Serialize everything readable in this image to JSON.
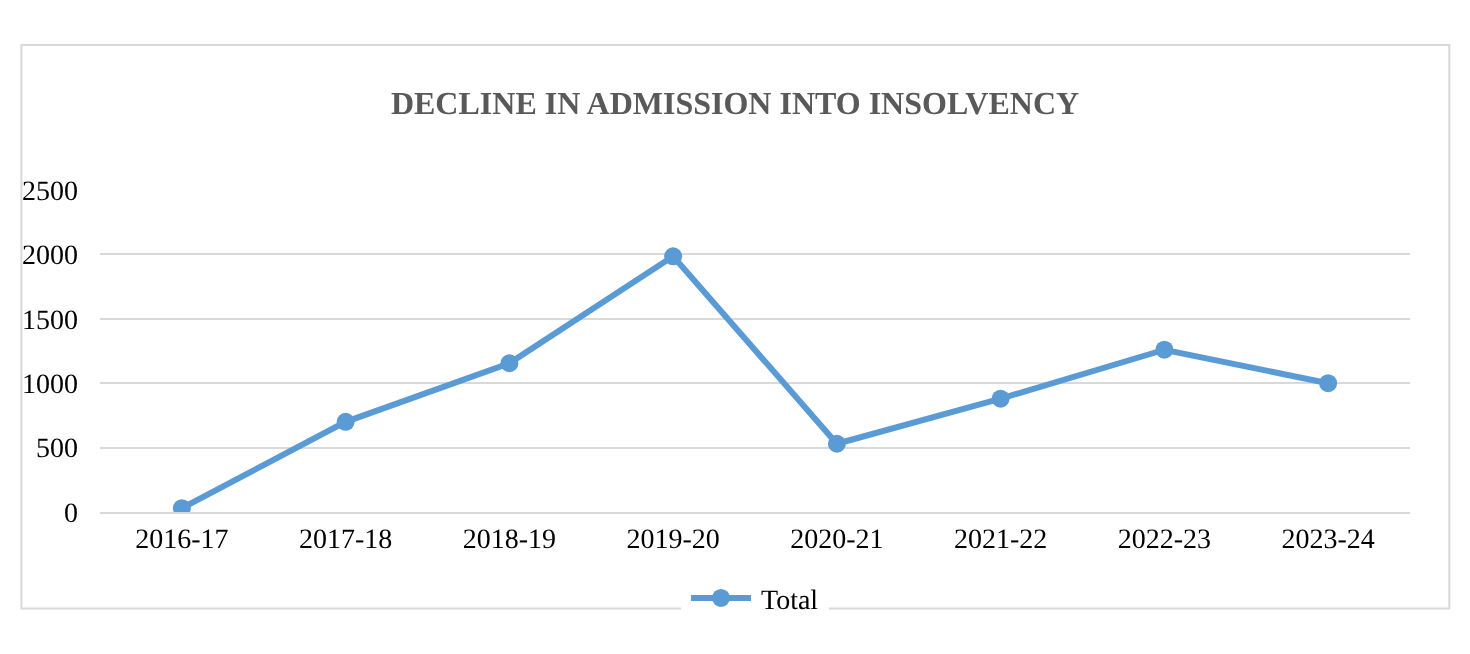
{
  "chart_data": {
    "type": "line",
    "title": "DECLINE IN ADMISSION INTO INSOLVENCY",
    "categories": [
      "2016-17",
      "2017-18",
      "2018-19",
      "2019-20",
      "2020-21",
      "2021-22",
      "2022-23",
      "2023-24"
    ],
    "series": [
      {
        "name": "Total",
        "color": "#5b9bd5",
        "values": [
          30,
          700,
          1155,
          1985,
          530,
          880,
          1260,
          1000
        ]
      }
    ],
    "ylim": [
      0,
      2500
    ],
    "yticks": [
      0,
      500,
      1000,
      1500,
      2000,
      2500
    ],
    "grid": "y",
    "legend": "bottom",
    "marker": "circle",
    "line_style": "solid"
  }
}
